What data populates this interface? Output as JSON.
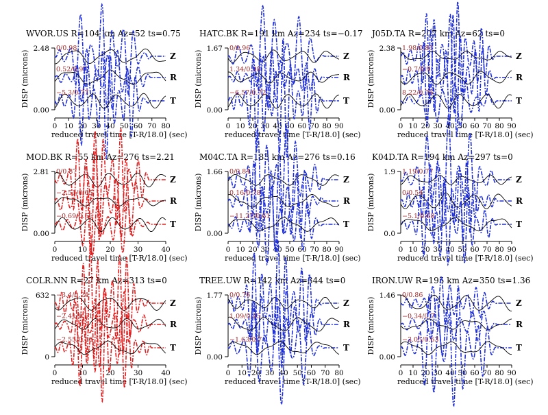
{
  "figure": {
    "background": "#ffffff",
    "observed_color": "#000000"
  },
  "chart_data": [
    {
      "type": "line",
      "station": "WVOR.US",
      "title": "WVOR.US R=104 km Az=52 ts=0.75",
      "ylabel": "DISP (microns)",
      "xlabel": "reduced travel time [T-R/18.0] (sec)",
      "ytick_top": "2.48",
      "ytick_bottom": "0.00",
      "xlim": [
        0,
        80
      ],
      "xticks": [
        "0",
        "10",
        "20",
        "30",
        "40",
        "50",
        "60",
        "70",
        "80"
      ],
      "synthetic_color": "#1f2fd6",
      "components": [
        {
          "label": "Z",
          "annotation": "0/0.98"
        },
        {
          "label": "R",
          "annotation": "0.52/0.97"
        },
        {
          "label": "T",
          "annotation": "−5.3/0.77"
        }
      ]
    },
    {
      "type": "line",
      "station": "HATC.BK",
      "title": "HATC.BK R=191 km Az=234 ts=−0.17",
      "ylabel": "DISP (microns)",
      "xlabel": "reduced travel time [T-R/18.0] (sec)",
      "ytick_top": "1.67",
      "ytick_bottom": "0.00",
      "xlim": [
        0,
        90
      ],
      "xticks": [
        "0",
        "10",
        "20",
        "30",
        "40",
        "50",
        "60",
        "70",
        "80",
        "90"
      ],
      "synthetic_color": "#1f2fd6",
      "components": [
        {
          "label": "Z",
          "annotation": "0/0.96"
        },
        {
          "label": "R",
          "annotation": "1.34/0.98"
        },
        {
          "label": "T",
          "annotation": "−6.57/0.72"
        }
      ]
    },
    {
      "type": "line",
      "station": "J05D.TA",
      "title": "J05D.TA R=207 km Az=62 ts=0",
      "ylabel": "DISP (microns)",
      "xlabel": "reduced travel time [T-R/18.0] (sec)",
      "ytick_top": "2.38",
      "ytick_bottom": "0.00",
      "xlim": [
        0,
        90
      ],
      "xticks": [
        "0",
        "10",
        "20",
        "30",
        "40",
        "50",
        "60",
        "70",
        "80",
        "90"
      ],
      "synthetic_color": "#1f2fd6",
      "components": [
        {
          "label": "Z",
          "annotation": "1.98/0.85"
        },
        {
          "label": "R",
          "annotation": "−0.7/0.9"
        },
        {
          "label": "T",
          "annotation": "8.22/0.76"
        }
      ]
    },
    {
      "type": "line",
      "station": "MOD.BK",
      "title": "MOD.BK R=55 km Az=276 ts=2.21",
      "ylabel": "DISP (microns)",
      "xlabel": "reduced travel time [T-R/18.0] (sec)",
      "ytick_top": "2.81",
      "ytick_bottom": "0.00",
      "xlim": [
        0,
        40
      ],
      "xticks": [
        "0",
        "10",
        "20",
        "30",
        "40"
      ],
      "synthetic_color": "#e02020",
      "components": [
        {
          "label": "Z",
          "annotation": "0/0.87"
        },
        {
          "label": "R",
          "annotation": "−2.51/0.65"
        },
        {
          "label": "T",
          "annotation": "−0.69/0.56"
        }
      ]
    },
    {
      "type": "line",
      "station": "M04C.TA",
      "title": "M04C.TA R=183 km Az=276 ts=0.16",
      "ylabel": "DISP (microns)",
      "xlabel": "reduced travel time [T-R/18.0] (sec)",
      "ytick_top": "1.66",
      "ytick_bottom": "0.00",
      "xlim": [
        0,
        90
      ],
      "xticks": [
        "0",
        "10",
        "20",
        "30",
        "40",
        "50",
        "60",
        "70",
        "80",
        "90"
      ],
      "synthetic_color": "#1f2fd6",
      "components": [
        {
          "label": "Z",
          "annotation": "0/0.84"
        },
        {
          "label": "R",
          "annotation": "0.16/0.78"
        },
        {
          "label": "T",
          "annotation": "−11.27/0.61"
        }
      ]
    },
    {
      "type": "line",
      "station": "K04D.TA",
      "title": "K04D.TA R=194 km Az=297 ts=0",
      "ylabel": "DISP (microns)",
      "xlabel": "reduced travel time [T-R/18.0] (sec)",
      "ytick_top": "1.9",
      "ytick_bottom": "0.0",
      "xlim": [
        0,
        90
      ],
      "xticks": [
        "0",
        "10",
        "20",
        "30",
        "40",
        "50",
        "60",
        "70",
        "80",
        "90"
      ],
      "synthetic_color": "#1f2fd6",
      "components": [
        {
          "label": "Z",
          "annotation": "1.19/0.77"
        },
        {
          "label": "R",
          "annotation": "0/0.54"
        },
        {
          "label": "T",
          "annotation": "−5.1/0.68"
        }
      ]
    },
    {
      "type": "line",
      "station": "COLR.NN",
      "title": "COLR.NN R=27 km Az=313 ts=0",
      "ylabel": "DISP (microns)",
      "xlabel": "reduced travel time [T-R/18.0] (sec)",
      "ytick_top": "632",
      "ytick_bottom": "0",
      "xlim": [
        0,
        40
      ],
      "xticks": [
        "0",
        "10",
        "20",
        "30",
        "40"
      ],
      "synthetic_color": "#e02020",
      "components": [
        {
          "label": "Z",
          "annotation": "−3.4/0.24"
        },
        {
          "label": "R",
          "annotation": "−2.41/0.51"
        },
        {
          "label": "T",
          "annotation": "−2.55/0.56"
        }
      ]
    },
    {
      "type": "line",
      "station": "TREE.UW",
      "title": "TREE.UW R=142 km Az=344 ts=0",
      "ylabel": "DISP (microns)",
      "xlabel": "reduced travel time [T-R/18.0] (sec)",
      "ytick_top": "1.77",
      "ytick_bottom": "0.00",
      "xlim": [
        0,
        80
      ],
      "xticks": [
        "0",
        "10",
        "20",
        "30",
        "40",
        "50",
        "60",
        "70",
        "80"
      ],
      "synthetic_color": "#1f2fd6",
      "components": [
        {
          "label": "Z",
          "annotation": "0/0.76"
        },
        {
          "label": "R",
          "annotation": "1.09/0.85"
        },
        {
          "label": "T",
          "annotation": "−1.63/0.7"
        }
      ]
    },
    {
      "type": "line",
      "station": "IRON.UW",
      "title": "IRON.UW R=195 km Az=350 ts=1.36",
      "ylabel": "DISP (microns)",
      "xlabel": "reduced travel time [T-R/18.0] (sec)",
      "ytick_top": "1.46",
      "ytick_bottom": "0.00",
      "xlim": [
        0,
        90
      ],
      "xticks": [
        "0",
        "10",
        "20",
        "30",
        "40",
        "50",
        "60",
        "70",
        "80",
        "90"
      ],
      "synthetic_color": "#1f2fd6",
      "components": [
        {
          "label": "Z",
          "annotation": "0/0.86"
        },
        {
          "label": "R",
          "annotation": "−0.34/0.7"
        },
        {
          "label": "T",
          "annotation": "−3.05/0.63"
        }
      ]
    }
  ]
}
